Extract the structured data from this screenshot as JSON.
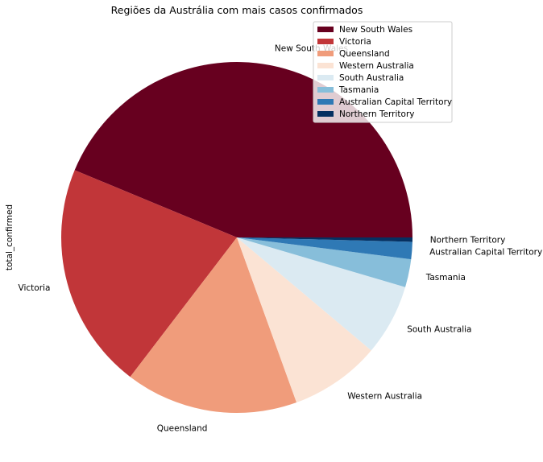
{
  "chart_data": {
    "type": "pie",
    "title": "Regiões da Austrália com mais casos confirmados",
    "ylabel": "total_confirmed",
    "legend_position": "top-right",
    "slices": [
      {
        "label": "New South Wales",
        "value": 44.0,
        "color": "#67001f"
      },
      {
        "label": "Victoria",
        "value": 21.0,
        "color": "#c13639"
      },
      {
        "label": "Queensland",
        "value": 16.0,
        "color": "#f09c7b"
      },
      {
        "label": "Western Australia",
        "value": 8.4,
        "color": "#fbe3d4"
      },
      {
        "label": "South Australia",
        "value": 6.6,
        "color": "#dbeaf2"
      },
      {
        "label": "Tasmania",
        "value": 2.6,
        "color": "#87beda"
      },
      {
        "label": "Australian Capital Territory",
        "value": 1.6,
        "color": "#2f79b5"
      },
      {
        "label": "Northern Territory",
        "value": 0.4,
        "color": "#053061"
      }
    ]
  }
}
